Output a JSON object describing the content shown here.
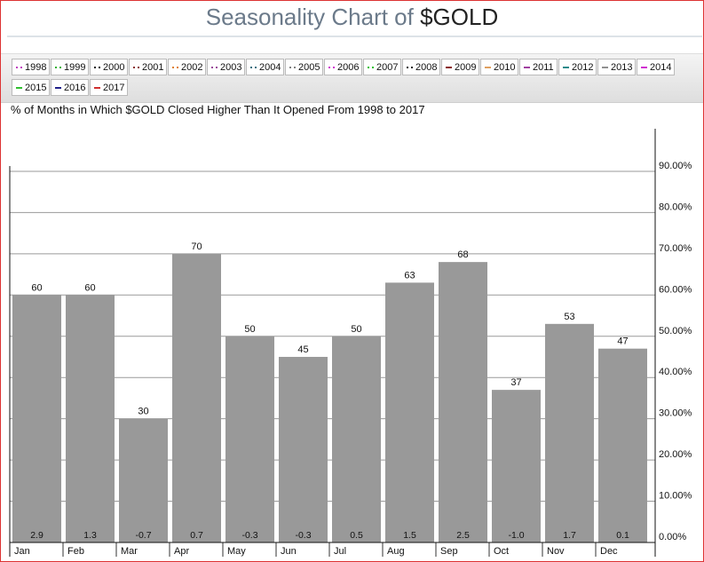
{
  "page": {
    "title_prefix": "Seasonality Chart of ",
    "title_symbol": "$GOLD"
  },
  "legend": [
    {
      "label": "1998",
      "color": "#c040c0",
      "style": "dotted"
    },
    {
      "label": "1999",
      "color": "#30b030",
      "style": "dotted"
    },
    {
      "label": "2000",
      "color": "#111111",
      "style": "dotted"
    },
    {
      "label": "2001",
      "color": "#8a3030",
      "style": "dotted"
    },
    {
      "label": "2002",
      "color": "#e08030",
      "style": "dotted"
    },
    {
      "label": "2003",
      "color": "#9a4a9a",
      "style": "dotted"
    },
    {
      "label": "2004",
      "color": "#307080",
      "style": "dotted"
    },
    {
      "label": "2005",
      "color": "#808080",
      "style": "dotted"
    },
    {
      "label": "2006",
      "color": "#d030d0",
      "style": "dotted"
    },
    {
      "label": "2007",
      "color": "#20c020",
      "style": "dotted"
    },
    {
      "label": "2008",
      "color": "#222222",
      "style": "dotted"
    },
    {
      "label": "2009",
      "color": "#8a2020",
      "style": "solid"
    },
    {
      "label": "2010",
      "color": "#e0a060",
      "style": "solid"
    },
    {
      "label": "2011",
      "color": "#a040a0",
      "style": "solid"
    },
    {
      "label": "2012",
      "color": "#2a8a8a",
      "style": "solid"
    },
    {
      "label": "2013",
      "color": "#909090",
      "style": "solid"
    },
    {
      "label": "2014",
      "color": "#d030d0",
      "style": "solid"
    },
    {
      "label": "2015",
      "color": "#30c030",
      "style": "solid"
    },
    {
      "label": "2016",
      "color": "#20208a",
      "style": "solid"
    },
    {
      "label": "2017",
      "color": "#d03030",
      "style": "solid"
    }
  ],
  "chart_data": {
    "type": "bar",
    "title": "% of Months in Which $GOLD Closed Higher Than It Opened From 1998 to 2017",
    "categories": [
      "Jan",
      "Feb",
      "Mar",
      "Apr",
      "May",
      "Jun",
      "Jul",
      "Aug",
      "Sep",
      "Oct",
      "Nov",
      "Dec"
    ],
    "values": [
      60,
      60,
      30,
      70,
      50,
      45,
      50,
      63,
      68,
      37,
      53,
      47
    ],
    "value_labels": [
      "60",
      "60",
      "30",
      "70",
      "50",
      "45",
      "50",
      "63",
      "68",
      "37",
      "53",
      "47"
    ],
    "avg_change_labels": [
      "2.9",
      "1.3",
      "-0.7",
      "0.7",
      "-0.3",
      "-0.3",
      "0.5",
      "1.5",
      "2.5",
      "-1.0",
      "1.7",
      "0.1"
    ],
    "y_ticks": [
      "0.00%",
      "10.00%",
      "20.00%",
      "30.00%",
      "40.00%",
      "50.00%",
      "60.00%",
      "70.00%",
      "80.00%",
      "90.00%"
    ],
    "ylim": [
      0,
      100
    ],
    "y_axis_side": "right",
    "grid": true,
    "bar_color": "#999999"
  }
}
